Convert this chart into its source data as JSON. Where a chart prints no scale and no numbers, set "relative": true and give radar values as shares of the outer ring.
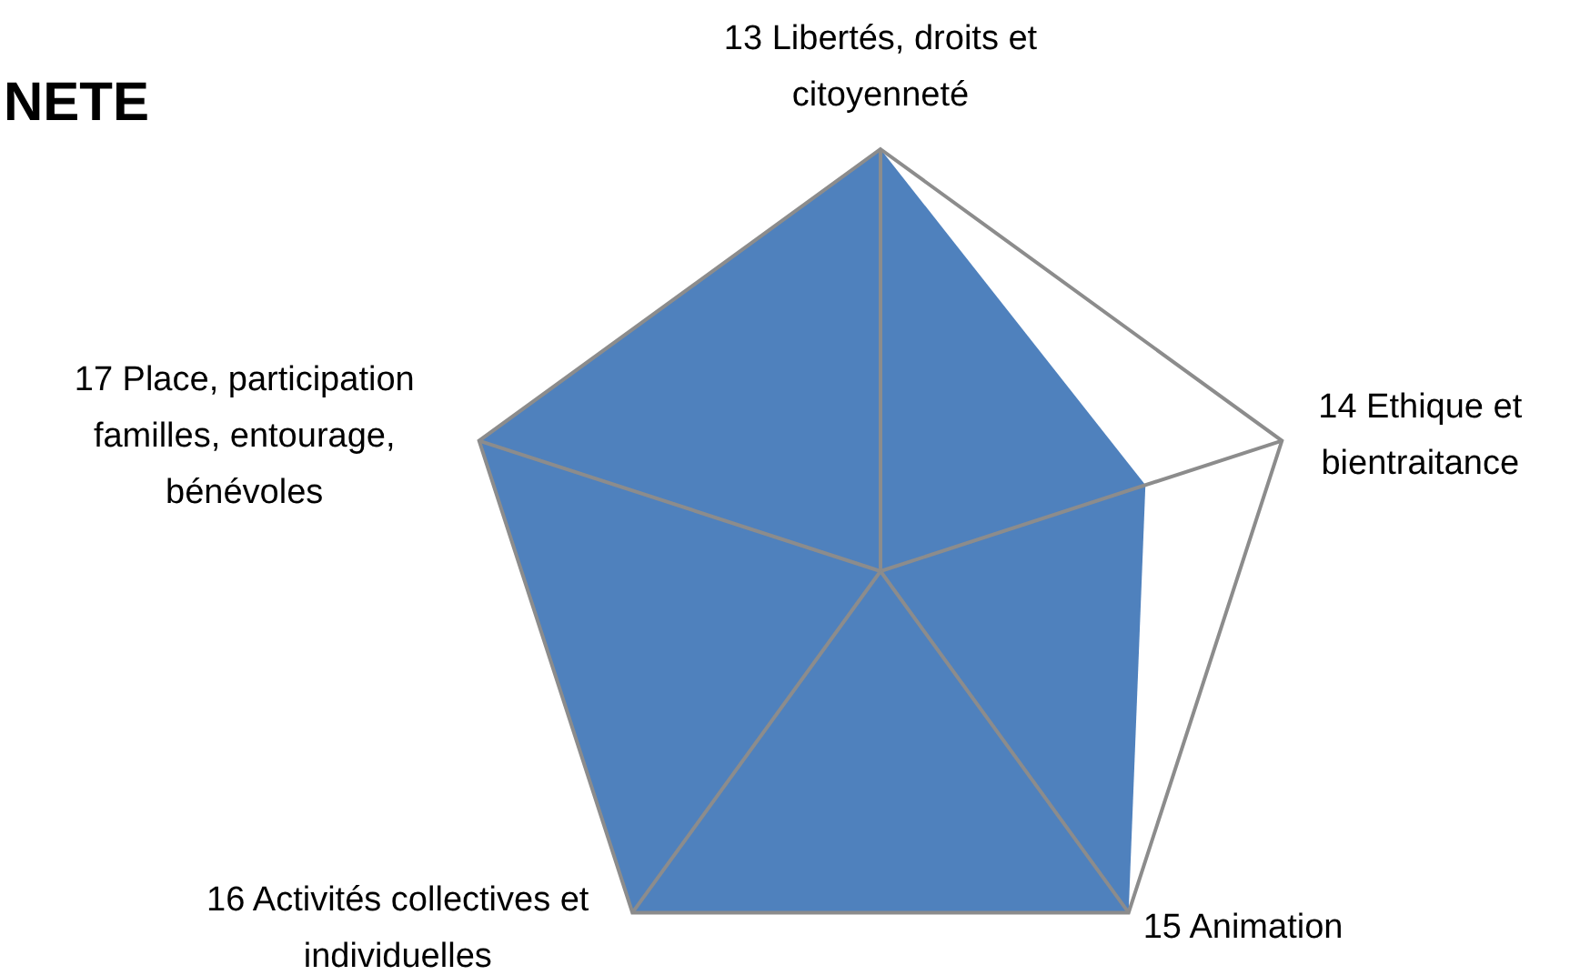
{
  "chart_data": {
    "type": "radar",
    "title": "NETE",
    "relative": true,
    "grid": true,
    "categories": [
      "13 Libertés, droits et citoyenneté",
      "14 Ethique et bientraitance",
      "15 Animation",
      "16 Activités collectives et individuelles",
      "17 Place, participation familles, entourage, bénévoles"
    ],
    "series": [
      {
        "color": "#4f81bd",
        "values": [
          1,
          0.66,
          1,
          1,
          1
        ]
      }
    ]
  }
}
